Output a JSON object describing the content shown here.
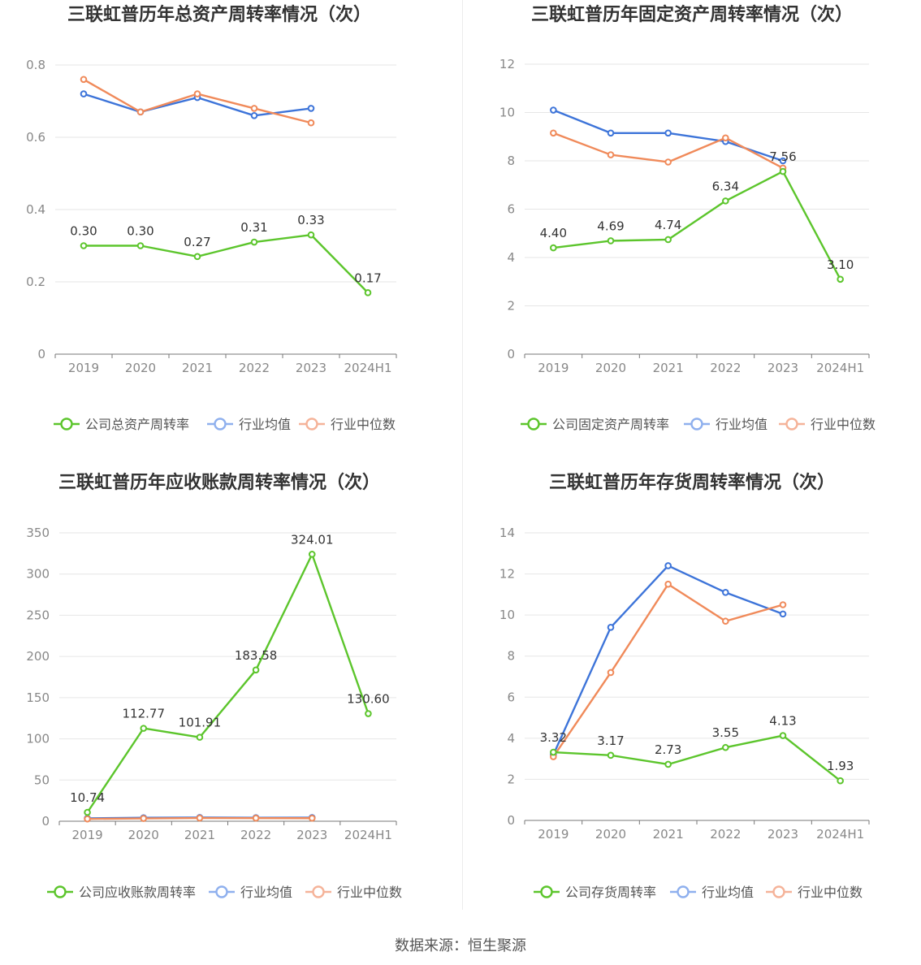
{
  "source_text": "数据来源：恒生聚源",
  "colors": {
    "company": "#5cc52c",
    "industry_avg": "#3d74d9",
    "industry_median": "#f08a5a"
  },
  "chart_data": [
    {
      "type": "line",
      "title": "三联虹普历年总资产周转率情况（次）",
      "categories": [
        "2019",
        "2020",
        "2021",
        "2022",
        "2023",
        "2024H1"
      ],
      "ylim": [
        0,
        0.8
      ],
      "yticks": [
        0,
        0.2,
        0.4,
        0.6,
        0.8
      ],
      "ytick_labels": [
        "0",
        "0.2",
        "0.4",
        "0.6",
        "0.8"
      ],
      "grid": true,
      "legend_position": "bottom",
      "series": [
        {
          "name": "公司总资产周转率",
          "values": [
            0.3,
            0.3,
            0.27,
            0.31,
            0.33,
            0.17
          ],
          "labels": [
            "0.30",
            "0.30",
            "0.27",
            "0.31",
            "0.33",
            "0.17"
          ]
        },
        {
          "name": "行业均值",
          "values": [
            0.72,
            0.67,
            0.71,
            0.66,
            0.68,
            null
          ]
        },
        {
          "name": "行业中位数",
          "values": [
            0.76,
            0.67,
            0.72,
            0.68,
            0.64,
            null
          ]
        }
      ]
    },
    {
      "type": "line",
      "title": "三联虹普历年固定资产周转率情况（次）",
      "categories": [
        "2019",
        "2020",
        "2021",
        "2022",
        "2023",
        "2024H1"
      ],
      "ylim": [
        0,
        12
      ],
      "yticks": [
        0,
        2,
        4,
        6,
        8,
        10,
        12
      ],
      "ytick_labels": [
        "0",
        "2",
        "4",
        "6",
        "8",
        "10",
        "12"
      ],
      "grid": true,
      "legend_position": "bottom",
      "series": [
        {
          "name": "公司固定资产周转率",
          "values": [
            4.4,
            4.69,
            4.74,
            6.34,
            7.56,
            3.1
          ],
          "labels": [
            "4.40",
            "4.69",
            "4.74",
            "6.34",
            "7.56",
            "3.10"
          ]
        },
        {
          "name": "行业均值",
          "values": [
            10.1,
            9.15,
            9.15,
            8.8,
            8.0,
            null
          ]
        },
        {
          "name": "行业中位数",
          "values": [
            9.15,
            8.25,
            7.95,
            8.95,
            7.7,
            null
          ]
        }
      ]
    },
    {
      "type": "line",
      "title": "三联虹普历年应收账款周转率情况（次）",
      "categories": [
        "2019",
        "2020",
        "2021",
        "2022",
        "2023",
        "2024H1"
      ],
      "ylim": [
        0,
        350
      ],
      "yticks": [
        0,
        50,
        100,
        150,
        200,
        250,
        300,
        350
      ],
      "ytick_labels": [
        "0",
        "50",
        "100",
        "150",
        "200",
        "250",
        "300",
        "350"
      ],
      "grid": true,
      "legend_position": "bottom",
      "series": [
        {
          "name": "公司应收账款周转率",
          "values": [
            10.74,
            112.77,
            101.91,
            183.58,
            324.01,
            130.6
          ],
          "labels": [
            "10.74",
            "112.77",
            "101.91",
            "183.58",
            "324.01",
            "130.60"
          ]
        },
        {
          "name": "行业均值",
          "values": [
            3.5,
            4.2,
            4.5,
            4.3,
            4.4,
            null
          ]
        },
        {
          "name": "行业中位数",
          "values": [
            2.8,
            3.4,
            3.9,
            3.8,
            3.7,
            null
          ]
        }
      ]
    },
    {
      "type": "line",
      "title": "三联虹普历年存货周转率情况（次）",
      "categories": [
        "2019",
        "2020",
        "2021",
        "2022",
        "2023",
        "2024H1"
      ],
      "ylim": [
        0,
        14
      ],
      "yticks": [
        0,
        2,
        4,
        6,
        8,
        10,
        12,
        14
      ],
      "ytick_labels": [
        "0",
        "2",
        "4",
        "6",
        "8",
        "10",
        "12",
        "14"
      ],
      "grid": true,
      "legend_position": "bottom",
      "series": [
        {
          "name": "公司存货周转率",
          "values": [
            3.32,
            3.17,
            2.73,
            3.55,
            4.13,
            1.93
          ],
          "labels": [
            "3.32",
            "3.17",
            "2.73",
            "3.55",
            "4.13",
            "1.93"
          ]
        },
        {
          "name": "行业均值",
          "values": [
            3.2,
            9.4,
            12.4,
            11.1,
            10.05,
            null
          ]
        },
        {
          "name": "行业中位数",
          "values": [
            3.1,
            7.2,
            11.5,
            9.7,
            10.5,
            null
          ]
        }
      ]
    }
  ]
}
